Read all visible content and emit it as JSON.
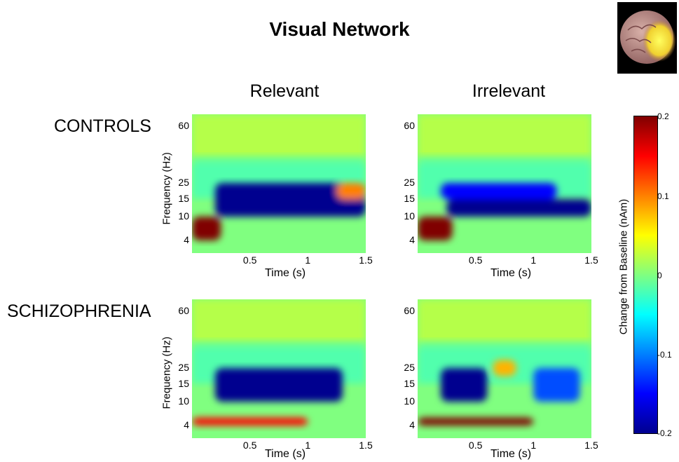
{
  "title": "Visual Network",
  "columns": [
    "Relevant",
    "Irrelevant"
  ],
  "rows": [
    "CONTROLS",
    "SCHIZOPHRENIA"
  ],
  "axes": {
    "xlabel": "Time (s)",
    "ylabel": "Frequency (Hz)",
    "xticks": [
      "0.5",
      "1",
      "1.5"
    ],
    "yticks": [
      "60",
      "25",
      "15",
      "10",
      "4"
    ]
  },
  "colorbar": {
    "label": "Change from Baseline (nAm)",
    "ticks": [
      "0.2",
      "0.1",
      "0",
      "-0.1",
      "-0.2"
    ],
    "range": [
      -0.2,
      0.2
    ],
    "colormap": "jet"
  },
  "icons": {
    "brain": "brain-image"
  },
  "chart_data": [
    {
      "type": "heatmap",
      "title": "Relevant",
      "group": "CONTROLS",
      "xlabel": "Time (s)",
      "ylabel": "Frequency (Hz)",
      "xlim": [
        0,
        1.5
      ],
      "yticks": [
        4,
        10,
        15,
        25,
        60
      ],
      "zlim": [
        -0.2,
        0.2
      ],
      "features": [
        {
          "region": "early low-frequency burst",
          "time": [
            0.0,
            0.25
          ],
          "freq": [
            4,
            10
          ],
          "value": 0.2
        },
        {
          "region": "beta/alpha suppression",
          "time": [
            0.2,
            1.5
          ],
          "freq": [
            10,
            25
          ],
          "value": -0.2
        },
        {
          "region": "late beta rebound",
          "time": [
            1.25,
            1.5
          ],
          "freq": [
            15,
            25
          ],
          "value": 0.1
        }
      ]
    },
    {
      "type": "heatmap",
      "title": "Irrelevant",
      "group": "CONTROLS",
      "xlabel": "Time (s)",
      "ylabel": "Frequency (Hz)",
      "xlim": [
        0,
        1.5
      ],
      "yticks": [
        4,
        10,
        15,
        25,
        60
      ],
      "zlim": [
        -0.2,
        0.2
      ],
      "features": [
        {
          "region": "early low-frequency burst",
          "time": [
            0.0,
            0.3
          ],
          "freq": [
            4,
            10
          ],
          "value": 0.2
        },
        {
          "region": "alpha suppression band",
          "time": [
            0.25,
            1.5
          ],
          "freq": [
            10,
            15
          ],
          "value": -0.2
        },
        {
          "region": "beta suppression patches",
          "time": [
            0.2,
            1.2
          ],
          "freq": [
            15,
            25
          ],
          "value": -0.15
        }
      ]
    },
    {
      "type": "heatmap",
      "title": "Relevant",
      "group": "SCHIZOPHRENIA",
      "xlabel": "Time (s)",
      "ylabel": "Frequency (Hz)",
      "xlim": [
        0,
        1.5
      ],
      "yticks": [
        4,
        10,
        15,
        25,
        60
      ],
      "zlim": [
        -0.2,
        0.2
      ],
      "features": [
        {
          "region": "low-frequency increase",
          "time": [
            0.0,
            1.0
          ],
          "freq": [
            4,
            6
          ],
          "value": 0.15
        },
        {
          "region": "beta/alpha suppression",
          "time": [
            0.2,
            1.3
          ],
          "freq": [
            10,
            25
          ],
          "value": -0.2
        }
      ]
    },
    {
      "type": "heatmap",
      "title": "Irrelevant",
      "group": "SCHIZOPHRENIA",
      "xlabel": "Time (s)",
      "ylabel": "Frequency (Hz)",
      "xlim": [
        0,
        1.5
      ],
      "yticks": [
        4,
        10,
        15,
        25,
        60
      ],
      "zlim": [
        -0.2,
        0.2
      ],
      "features": [
        {
          "region": "low-frequency increase",
          "time": [
            0.0,
            1.0
          ],
          "freq": [
            4,
            6
          ],
          "value": 0.2
        },
        {
          "region": "beta suppression",
          "time": [
            0.2,
            0.6
          ],
          "freq": [
            10,
            25
          ],
          "value": -0.2
        },
        {
          "region": "late beta suppression",
          "time": [
            1.0,
            1.4
          ],
          "freq": [
            10,
            25
          ],
          "value": -0.12
        },
        {
          "region": "beta increase",
          "time": [
            0.65,
            0.85
          ],
          "freq": [
            20,
            30
          ],
          "value": 0.08
        }
      ]
    }
  ]
}
